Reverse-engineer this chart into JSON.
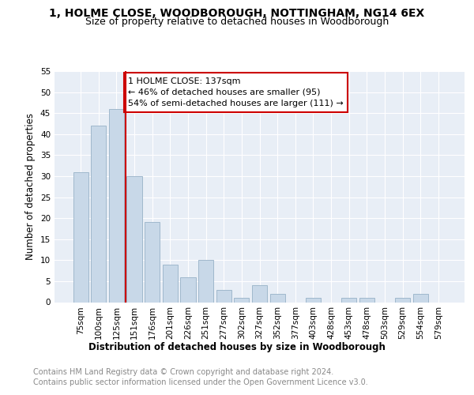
{
  "title1": "1, HOLME CLOSE, WOODBOROUGH, NOTTINGHAM, NG14 6EX",
  "title2": "Size of property relative to detached houses in Woodborough",
  "xlabel": "Distribution of detached houses by size in Woodborough",
  "ylabel": "Number of detached properties",
  "categories": [
    "75sqm",
    "100sqm",
    "125sqm",
    "151sqm",
    "176sqm",
    "201sqm",
    "226sqm",
    "251sqm",
    "277sqm",
    "302sqm",
    "327sqm",
    "352sqm",
    "377sqm",
    "403sqm",
    "428sqm",
    "453sqm",
    "478sqm",
    "503sqm",
    "529sqm",
    "554sqm",
    "579sqm"
  ],
  "values": [
    31,
    42,
    46,
    30,
    19,
    9,
    6,
    10,
    3,
    1,
    4,
    2,
    0,
    1,
    0,
    1,
    1,
    0,
    1,
    2,
    0
  ],
  "bar_color": "#c8d8e8",
  "bar_edge_color": "#a0b8cc",
  "red_line_x": 2.5,
  "annotation_text": "1 HOLME CLOSE: 137sqm\n← 46% of detached houses are smaller (95)\n54% of semi-detached houses are larger (111) →",
  "annotation_box_color": "#cc0000",
  "ylim": [
    0,
    55
  ],
  "yticks": [
    0,
    5,
    10,
    15,
    20,
    25,
    30,
    35,
    40,
    45,
    50,
    55
  ],
  "background_color": "#e8eef6",
  "grid_color": "#ffffff",
  "footer1": "Contains HM Land Registry data © Crown copyright and database right 2024.",
  "footer2": "Contains public sector information licensed under the Open Government Licence v3.0.",
  "title1_fontsize": 10,
  "title2_fontsize": 9,
  "axis_label_fontsize": 8.5,
  "tick_fontsize": 7.5,
  "footer_fontsize": 7,
  "annotation_fontsize": 8
}
